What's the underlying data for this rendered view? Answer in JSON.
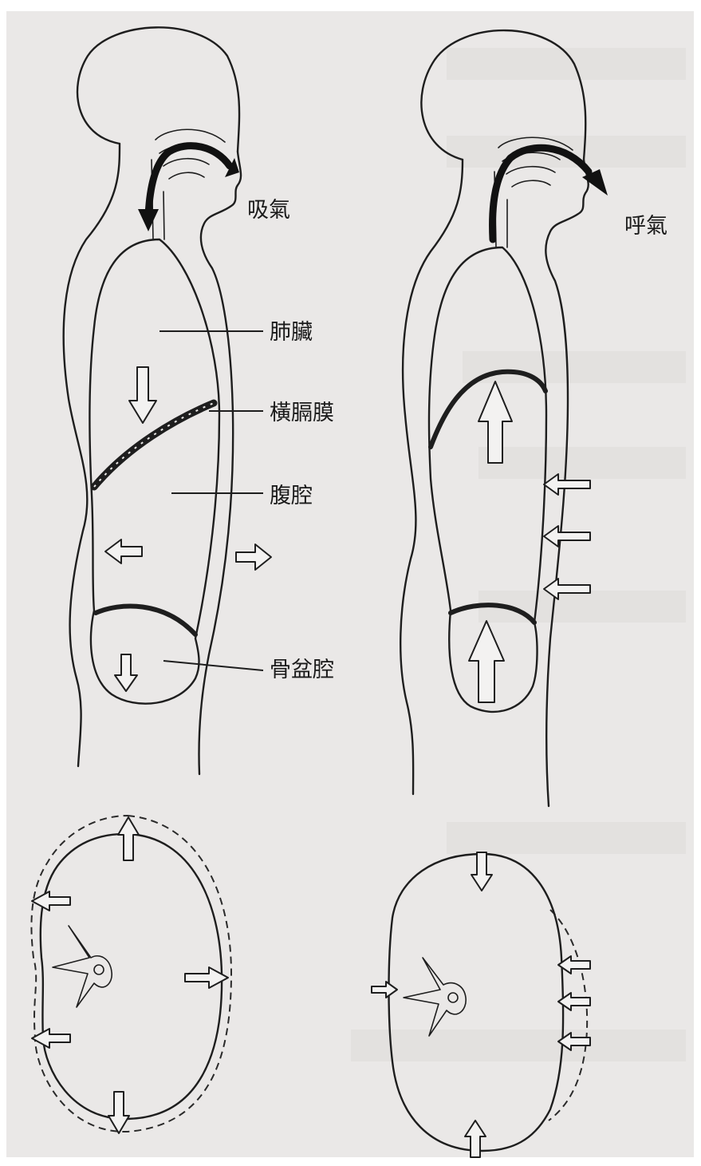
{
  "labels": {
    "inhale": "吸氣",
    "exhale": "呼氣",
    "lungs": "肺臟",
    "diaphragm": "橫膈膜",
    "abdominal_cavity": "腹腔",
    "pelvic_cavity": "骨盆腔"
  },
  "colors": {
    "paper": "#eae8e7",
    "ink": "#1e1e1e"
  }
}
